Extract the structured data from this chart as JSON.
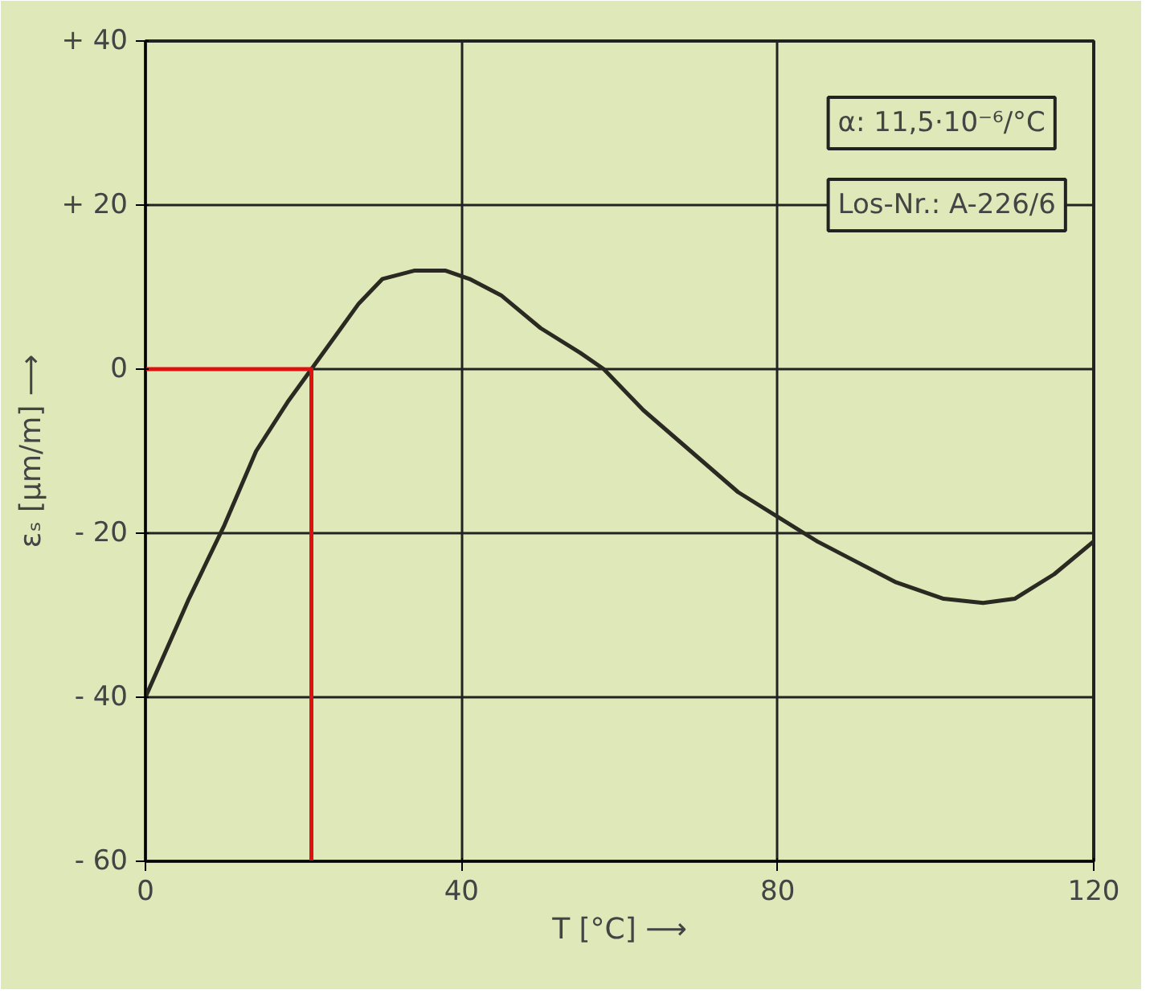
{
  "chart_data": {
    "type": "line",
    "xlabel": "T [°C] ⟶",
    "ylabel": "εₛ [µm/m] ⟶",
    "xlim": [
      0,
      120
    ],
    "ylim": [
      -60,
      40
    ],
    "xticks": [
      0,
      40,
      80,
      120
    ],
    "yticks": [
      {
        "value": 40,
        "label": "+ 40"
      },
      {
        "value": 20,
        "label": "+ 20"
      },
      0,
      {
        "value": -20,
        "label": "- 20"
      },
      {
        "value": -40,
        "label": "- 40"
      },
      {
        "value": -60,
        "label": "- 60"
      }
    ],
    "grid": true,
    "marker": "none",
    "line_style": "solid",
    "series": [
      {
        "color": "#2a2a22",
        "x": [
          0,
          5.5,
          10,
          14,
          18,
          21,
          24,
          27,
          30,
          34,
          38,
          41,
          45,
          50,
          55,
          58,
          63,
          69,
          75,
          80,
          85,
          89,
          95,
          101,
          106,
          110,
          115,
          120
        ],
        "values": [
          -40,
          -28,
          -19,
          -10,
          -4,
          0,
          4,
          8,
          11,
          12,
          12,
          11,
          9,
          5,
          2,
          0,
          -5,
          -10,
          -15,
          -18,
          -21,
          -23,
          -26,
          -28,
          -28.5,
          -28,
          -25,
          -21
        ]
      },
      {
        "color": "#e01010",
        "x": [
          0,
          21,
          21
        ],
        "values": [
          0,
          0,
          -60
        ]
      }
    ],
    "annotations": [
      "α: 11,5·10⁻⁶/°C",
      "Los-Nr.: A-226/6"
    ]
  }
}
